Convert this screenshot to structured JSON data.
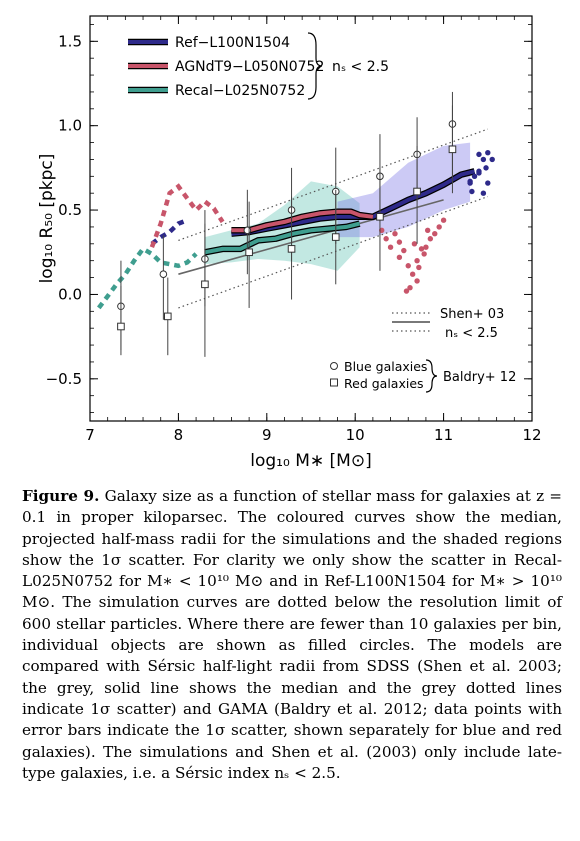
{
  "chart_data": {
    "type": "line",
    "xlabel": "log₁₀ M∗ [M⊙]",
    "ylabel": "log₁₀ R₅₀ [pkpc]",
    "xlim": [
      7,
      12
    ],
    "ylim": [
      -0.75,
      1.65
    ],
    "xticks": [
      "7",
      "8",
      "9",
      "10",
      "11",
      "12"
    ],
    "yticks": [
      "−0.5",
      "0.0",
      "0.5",
      "1.0",
      "1.5"
    ],
    "ytick_values": [
      -0.5,
      0,
      0.5,
      1.0,
      1.5
    ],
    "xtick_values": [
      7,
      8,
      9,
      10,
      11,
      12
    ],
    "series": [
      {
        "name": "Ref−L100N1504",
        "color": "#2e2a8a",
        "dotted": {
          "x": [
            7.7,
            7.8,
            7.9,
            8.0,
            8.1
          ],
          "y": [
            0.3,
            0.34,
            0.37,
            0.42,
            0.44
          ]
        },
        "solid": {
          "x": [
            8.6,
            8.8,
            9.0,
            9.2,
            9.4,
            9.6,
            9.8,
            10.0,
            10.2,
            10.4,
            10.6,
            10.8,
            11.0,
            11.2,
            11.35
          ],
          "y": [
            0.36,
            0.37,
            0.39,
            0.41,
            0.43,
            0.45,
            0.46,
            0.46,
            0.46,
            0.51,
            0.56,
            0.6,
            0.65,
            0.71,
            0.73
          ]
        },
        "points": {
          "x": [
            11.4,
            11.45,
            11.5,
            11.45,
            11.35,
            11.3,
            11.55,
            11.4,
            11.48,
            11.4,
            11.5,
            11.32,
            11.3
          ],
          "y": [
            0.73,
            0.8,
            0.84,
            0.6,
            0.7,
            0.66,
            0.8,
            0.83,
            0.75,
            0.72,
            0.66,
            0.61,
            0.67
          ]
        }
      },
      {
        "name": "AGNdT9−L050N0752",
        "color": "#c8556a",
        "dotted": {
          "x": [
            7.7,
            7.8,
            7.9,
            8.0,
            8.1,
            8.2,
            8.3,
            8.4,
            8.5
          ],
          "y": [
            0.28,
            0.42,
            0.6,
            0.64,
            0.57,
            0.5,
            0.55,
            0.51,
            0.43
          ]
        },
        "solid": {
          "x": [
            8.6,
            8.8,
            9.0,
            9.2,
            9.4,
            9.6,
            9.8,
            9.95,
            10.05,
            10.2
          ],
          "y": [
            0.38,
            0.38,
            0.41,
            0.43,
            0.46,
            0.48,
            0.49,
            0.49,
            0.47,
            0.46
          ]
        },
        "points": {
          "x": [
            10.3,
            10.35,
            10.4,
            10.45,
            10.5,
            10.55,
            10.6,
            10.65,
            10.7,
            10.75,
            10.8,
            10.85,
            10.9,
            10.95,
            11.0,
            10.62,
            10.58,
            10.7,
            10.78,
            10.82,
            10.67,
            10.5,
            10.72
          ],
          "y": [
            0.38,
            0.33,
            0.28,
            0.36,
            0.31,
            0.26,
            0.17,
            0.12,
            0.2,
            0.27,
            0.28,
            0.33,
            0.36,
            0.4,
            0.44,
            0.04,
            0.02,
            0.08,
            0.24,
            0.38,
            0.3,
            0.22,
            0.16
          ]
        }
      },
      {
        "name": "Recal−L025N0752",
        "color": "#3f9e8f",
        "dotted": {
          "x": [
            7.1,
            7.2,
            7.3,
            7.4,
            7.5,
            7.6,
            7.7,
            7.8,
            7.9,
            8.0,
            8.1,
            8.2
          ],
          "y": [
            -0.08,
            -0.01,
            0.06,
            0.12,
            0.2,
            0.27,
            0.24,
            0.19,
            0.18,
            0.17,
            0.19,
            0.24
          ]
        },
        "solid": {
          "x": [
            8.3,
            8.5,
            8.7,
            8.9,
            9.1,
            9.3,
            9.5,
            9.7,
            9.9,
            10.05
          ],
          "y": [
            0.25,
            0.27,
            0.27,
            0.32,
            0.33,
            0.36,
            0.38,
            0.39,
            0.4,
            0.42
          ]
        }
      }
    ],
    "scatter_band": {
      "ref": {
        "x": [
          9.8,
          10.2,
          10.6,
          11.0,
          11.3
        ],
        "lo": [
          0.34,
          0.34,
          0.4,
          0.5,
          0.55
        ],
        "hi": [
          0.55,
          0.6,
          0.78,
          0.88,
          0.9
        ]
      },
      "recal": {
        "x": [
          8.3,
          8.6,
          8.9,
          9.2,
          9.5,
          9.8,
          10.05
        ],
        "lo": [
          0.18,
          0.19,
          0.21,
          0.2,
          0.18,
          0.14,
          0.28
        ],
        "hi": [
          0.34,
          0.38,
          0.42,
          0.53,
          0.67,
          0.64,
          0.54
        ]
      }
    },
    "shen03": {
      "name": "Shen+ 03",
      "median": {
        "x": [
          8.0,
          11.0
        ],
        "y": [
          0.12,
          0.56
        ]
      },
      "upper": {
        "x": [
          8.0,
          11.5
        ],
        "y": [
          0.32,
          0.98
        ]
      },
      "lower": {
        "x": [
          8.0,
          11.5
        ],
        "y": [
          -0.08,
          0.58
        ]
      },
      "note": "nₛ < 2.5"
    },
    "baldry12": {
      "name": "Baldry+ 12",
      "blue": {
        "x": [
          7.35,
          7.83,
          8.3,
          8.78,
          9.28,
          9.78,
          10.28,
          10.7,
          11.1
        ],
        "y": [
          -0.07,
          0.12,
          0.21,
          0.38,
          0.5,
          0.61,
          0.7,
          0.83,
          1.01
        ],
        "lo": [
          -0.33,
          -0.15,
          -0.07,
          0.12,
          0.2,
          0.3,
          0.43,
          0.55,
          0.71
        ],
        "hi": [
          0.2,
          0.35,
          0.5,
          0.62,
          0.75,
          0.87,
          0.95,
          1.05,
          1.2
        ]
      },
      "red": {
        "x": [
          7.35,
          7.88,
          8.3,
          8.8,
          9.28,
          9.78,
          10.28,
          10.7,
          11.1
        ],
        "y": [
          -0.19,
          -0.13,
          0.06,
          0.25,
          0.27,
          0.34,
          0.46,
          0.61,
          0.86
        ],
        "lo": [
          -0.36,
          -0.36,
          -0.37,
          -0.08,
          -0.03,
          0.06,
          0.14,
          0.3,
          0.6
        ],
        "hi": [
          0.05,
          0.1,
          0.42,
          0.55,
          0.58,
          0.62,
          0.75,
          0.88,
          1.12
        ]
      }
    },
    "legend_main": {
      "placement": "top-left",
      "bracket_label": "nₛ < 2.5"
    },
    "legend_shen": {
      "placement": "bottom-right"
    },
    "legend_baldry": {
      "placement": "bottom-right",
      "blue_label": "Blue galaxies",
      "red_label": "Red galaxies",
      "bracket_label": "Baldry+ 12"
    }
  },
  "caption": {
    "label": "Figure 9.",
    "text": "Galaxy size as a function of stellar mass for galaxies at z = 0.1 in proper kiloparsec. The coloured curves show the median, projected half-mass radii for the simulations and the shaded regions show the 1σ scatter. For clarity we only show the scatter in Recal-L025N0752 for M∗ < 10¹⁰ M⊙ and in Ref-L100N1504 for M∗ > 10¹⁰ M⊙. The simulation curves are dotted below the resolution limit of 600 stellar particles. Where there are fewer than 10 galaxies per bin, individual objects are shown as filled circles. The models are compared with Sérsic half-light radii from SDSS (Shen et al. 2003; the grey, solid line shows the median and the grey dotted lines indicate 1σ scatter) and GAMA (Baldry et al. 2012; data points with error bars indicate the 1σ scatter, shown separately for blue and red galaxies). The simulations and Shen et al. (2003) only include late-type galaxies, i.e. a Sérsic index nₛ < 2.5."
  }
}
